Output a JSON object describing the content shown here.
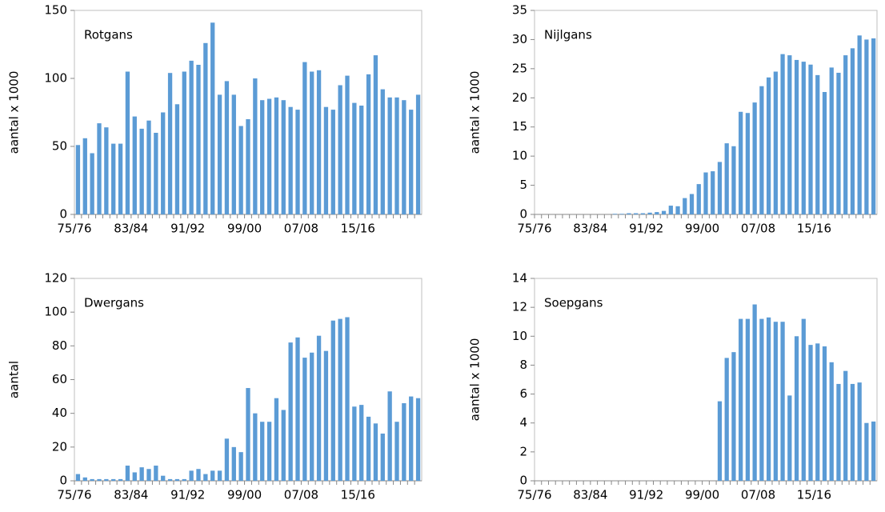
{
  "chart_data": [
    {
      "type": "bar",
      "label": "Rotgans",
      "ylabel": "aantal x 1000",
      "color": "#5b9bd5",
      "categories": [
        "75/76",
        null,
        null,
        null,
        null,
        null,
        null,
        null,
        "83/84",
        null,
        null,
        null,
        null,
        null,
        null,
        null,
        "91/92",
        null,
        null,
        null,
        null,
        null,
        null,
        null,
        "99/00",
        null,
        null,
        null,
        null,
        null,
        null,
        null,
        "07/08",
        null,
        null,
        null,
        null,
        null,
        null,
        null,
        "15/16",
        null,
        null,
        null,
        null,
        null,
        null,
        null,
        null
      ],
      "values": [
        51,
        56,
        45,
        67,
        64,
        52,
        52,
        105,
        72,
        63,
        69,
        60,
        75,
        104,
        81,
        105,
        113,
        110,
        126,
        141,
        88,
        98,
        88,
        65,
        70,
        100,
        84,
        85,
        86,
        84,
        79,
        77,
        112,
        105,
        106,
        79,
        77,
        95,
        102,
        82,
        80,
        103,
        117,
        92,
        86,
        86,
        84,
        77,
        88
      ],
      "ylim": [
        0,
        150
      ],
      "yticks": [
        0,
        50,
        100,
        150
      ]
    },
    {
      "type": "bar",
      "label": "Nijlgans",
      "ylabel": "aantal x 1000",
      "color": "#5b9bd5",
      "categories": [
        "75/76",
        null,
        null,
        null,
        null,
        null,
        null,
        null,
        "83/84",
        null,
        null,
        null,
        null,
        null,
        null,
        null,
        "91/92",
        null,
        null,
        null,
        null,
        null,
        null,
        null,
        "99/00",
        null,
        null,
        null,
        null,
        null,
        null,
        null,
        "07/08",
        null,
        null,
        null,
        null,
        null,
        null,
        null,
        "15/16",
        null,
        null,
        null,
        null,
        null,
        null,
        null,
        null
      ],
      "values": [
        0,
        0,
        0,
        0,
        0,
        0,
        0,
        0,
        0,
        0,
        0,
        0.1,
        0.1,
        0.2,
        0.2,
        0.2,
        0.3,
        0.4,
        0.6,
        1.5,
        1.4,
        2.8,
        3.5,
        5.2,
        7.2,
        7.4,
        9,
        12.2,
        11.7,
        17.6,
        17.4,
        19.2,
        22,
        23.5,
        24.5,
        27.5,
        27.3,
        26.5,
        26.2,
        25.7,
        23.9,
        21,
        25.2,
        24.3,
        27.3,
        28.5,
        30.7,
        30,
        30.2
      ],
      "ylim": [
        0,
        35
      ],
      "yticks": [
        0,
        5,
        10,
        15,
        20,
        25,
        30,
        35
      ]
    },
    {
      "type": "bar",
      "label": "Dwergans",
      "ylabel": "aantal",
      "color": "#5b9bd5",
      "categories": [
        "75/76",
        null,
        null,
        null,
        null,
        null,
        null,
        null,
        "83/84",
        null,
        null,
        null,
        null,
        null,
        null,
        null,
        "91/92",
        null,
        null,
        null,
        null,
        null,
        null,
        null,
        "99/00",
        null,
        null,
        null,
        null,
        null,
        null,
        null,
        "07/08",
        null,
        null,
        null,
        null,
        null,
        null,
        null,
        "15/16",
        null,
        null,
        null,
        null,
        null,
        null,
        null,
        null
      ],
      "values": [
        4,
        2,
        1,
        1,
        1,
        1,
        1,
        9,
        5,
        8,
        7,
        9,
        3,
        1,
        1,
        1,
        6,
        7,
        4,
        6,
        6,
        25,
        20,
        17,
        55,
        40,
        35,
        35,
        49,
        42,
        82,
        85,
        73,
        76,
        86,
        77,
        95,
        96,
        97,
        44,
        45,
        38,
        34,
        28,
        53,
        35,
        46,
        50,
        49
      ],
      "ylim": [
        0,
        120
      ],
      "yticks": [
        0,
        20,
        40,
        60,
        80,
        100,
        120
      ]
    },
    {
      "type": "bar",
      "label": "Soepgans",
      "ylabel": "aantal x 1000",
      "color": "#5b9bd5",
      "categories": [
        "75/76",
        null,
        null,
        null,
        null,
        null,
        null,
        null,
        "83/84",
        null,
        null,
        null,
        null,
        null,
        null,
        null,
        "91/92",
        null,
        null,
        null,
        null,
        null,
        null,
        null,
        "99/00",
        null,
        null,
        null,
        null,
        null,
        null,
        null,
        "07/08",
        null,
        null,
        null,
        null,
        null,
        null,
        null,
        "15/16",
        null,
        null,
        null,
        null,
        null,
        null,
        null,
        null
      ],
      "values": [
        0,
        0,
        0,
        0,
        0,
        0,
        0,
        0,
        0,
        0,
        0,
        0,
        0,
        0,
        0,
        0,
        0,
        0,
        0,
        0,
        0,
        0,
        0,
        0,
        0,
        0,
        5.5,
        8.5,
        8.9,
        11.2,
        11.2,
        12.2,
        11.2,
        11.3,
        11,
        11,
        5.9,
        10,
        11.2,
        9.4,
        9.5,
        9.3,
        8.2,
        6.7,
        7.6,
        6.7,
        6.8,
        4,
        4.1
      ],
      "ylim": [
        0,
        14
      ],
      "yticks": [
        0,
        2,
        4,
        6,
        8,
        10,
        12,
        14
      ]
    }
  ]
}
